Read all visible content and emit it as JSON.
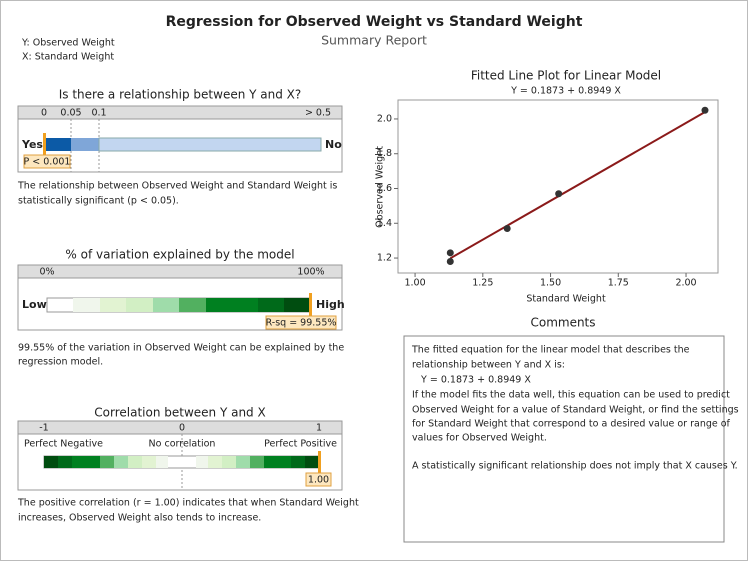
{
  "header": {
    "title": "Regression for Observed Weight vs Standard Weight",
    "subtitle": "Summary Report",
    "y_var": "Y: Observed Weight",
    "x_var": "X: Standard Weight"
  },
  "relationship": {
    "title": "Is there a relationship between Y and X?",
    "ticks": [
      "0",
      "0.05",
      "0.1",
      "> 0.5"
    ],
    "left": "Yes",
    "right": "No",
    "marker_label": "P < 0.001",
    "text": [
      "The relationship between Observed Weight and Standard Weight is",
      "statistically significant (p < 0.05)."
    ]
  },
  "variation": {
    "title": "% of variation explained by the model",
    "ticks": [
      "0%",
      "100%"
    ],
    "left": "Low",
    "right": "High",
    "marker_label": "R-sq = 99.55%",
    "text": [
      "99.55% of the variation in Observed Weight can be explained by the",
      "regression model."
    ]
  },
  "correlation": {
    "title": "Correlation between Y and X",
    "ticks": [
      "-1",
      "0",
      "1"
    ],
    "labels": [
      "Perfect Negative",
      "No correlation",
      "Perfect Positive"
    ],
    "marker_label": "1.00",
    "text": [
      "The positive correlation (r = 1.00) indicates that when Standard Weight",
      "increases, Observed Weight also tends to increase."
    ]
  },
  "chart_data": {
    "type": "scatter",
    "title": "Fitted Line Plot for Linear Model",
    "subtitle": "Y = 0.1873 + 0.8949 X",
    "x_label": "Standard Weight",
    "y_label": "Observed Weight",
    "x": [
      1.13,
      1.13,
      1.34,
      1.53,
      2.07
    ],
    "values": [
      1.18,
      1.23,
      1.37,
      1.57,
      2.05
    ],
    "color": "#333333",
    "fit_line": {
      "x": [
        1.13,
        2.07
      ],
      "values": [
        1.1985,
        2.0397
      ],
      "color": "#8b1a1a"
    },
    "xlim": [
      0.937,
      2.118
    ],
    "xticks": [
      {
        "value": 1,
        "label": "1.00"
      },
      {
        "value": 1.25,
        "label": "1.25"
      },
      {
        "value": 1.5,
        "label": "1.50"
      },
      {
        "value": 1.75,
        "label": "1.75"
      },
      {
        "value": 2,
        "label": "2.00"
      }
    ],
    "ylim": [
      1.114,
      2.109
    ],
    "yticks": [
      {
        "value": 1.2,
        "label": "1.2"
      },
      {
        "value": 1.4,
        "label": "1.4"
      },
      {
        "value": 1.6,
        "label": "1.6"
      },
      {
        "value": 1.8,
        "label": "1.8"
      },
      {
        "value": 2,
        "label": "2.0"
      }
    ]
  },
  "comments": {
    "title": "Comments",
    "lines": [
      "The fitted equation for the linear model that describes the",
      "relationship between Y and X is:",
      "   Y = 0.1873 + 0.8949 X",
      "If the model fits the data well, this equation can be used to predict",
      "Observed Weight for a value of Standard Weight, or find the settings",
      "for Standard Weight that correspond to a desired value or range of",
      "values for Observed Weight.",
      "A statistically significant relationship does not imply that X causes Y."
    ]
  }
}
